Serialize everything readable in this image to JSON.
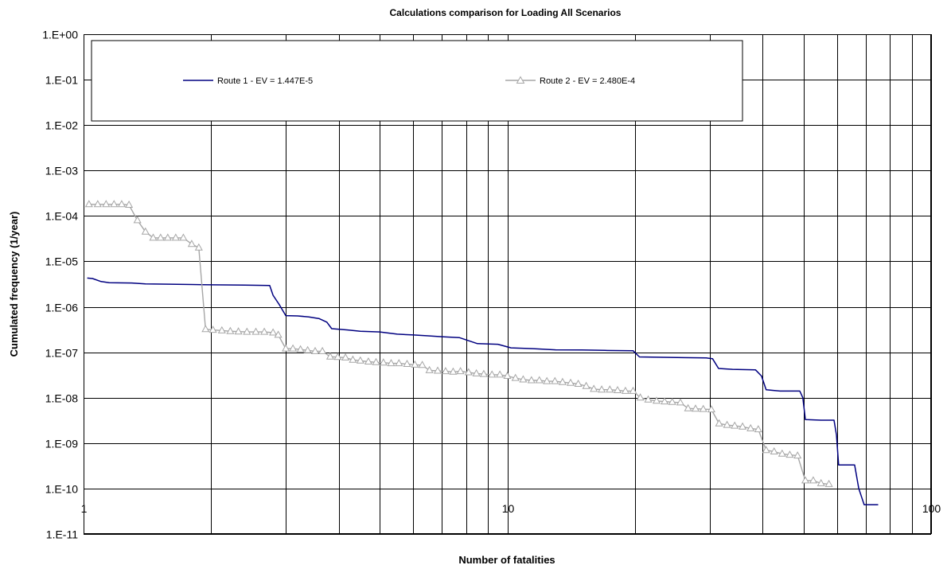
{
  "chart_data": {
    "type": "line",
    "title": "Calculations comparison for Loading All Scenarios",
    "xlabel": "Number of fatalities",
    "ylabel": "Cumulated frequency (1/year)",
    "x_scale": "log",
    "y_scale": "log",
    "xlim": [
      1,
      100
    ],
    "ylim": [
      1e-11,
      1
    ],
    "x_ticks": [
      {
        "value": 1,
        "label": "1"
      },
      {
        "value": 10,
        "label": "10"
      },
      {
        "value": 100,
        "label": "100"
      }
    ],
    "y_ticks": [
      {
        "value": 1,
        "label": "1.E+00"
      },
      {
        "value": 0.1,
        "label": "1.E-01"
      },
      {
        "value": 0.01,
        "label": "1.E-02"
      },
      {
        "value": 0.001,
        "label": "1.E-03"
      },
      {
        "value": 0.0001,
        "label": "1.E-04"
      },
      {
        "value": 1e-05,
        "label": "1.E-05"
      },
      {
        "value": 1e-06,
        "label": "1.E-06"
      },
      {
        "value": 1e-07,
        "label": "1.E-07"
      },
      {
        "value": 1e-08,
        "label": "1.E-08"
      },
      {
        "value": 1e-09,
        "label": "1.E-09"
      },
      {
        "value": 1e-10,
        "label": "1.E-10"
      },
      {
        "value": 1e-11,
        "label": "1.E-11"
      }
    ],
    "x_gridlines": [
      2,
      3,
      4,
      5,
      6,
      7,
      8,
      9,
      20,
      30,
      40,
      50,
      60,
      70,
      80,
      90
    ],
    "grid": true,
    "legend_position": "top",
    "series": [
      {
        "name": "Route 1 - EV = 1.447E-5",
        "color": "#000080",
        "marker": "none",
        "points": [
          [
            1.02,
            4.3e-06
          ],
          [
            1.05,
            4.2e-06
          ],
          [
            1.1,
            3.6e-06
          ],
          [
            1.15,
            3.4e-06
          ],
          [
            1.3,
            3.35e-06
          ],
          [
            1.4,
            3.2e-06
          ],
          [
            1.6,
            3.15e-06
          ],
          [
            1.8,
            3.1e-06
          ],
          [
            2.0,
            3.05e-06
          ],
          [
            2.4,
            3e-06
          ],
          [
            2.75,
            2.95e-06
          ],
          [
            2.8,
            1.8e-06
          ],
          [
            2.9,
            1.1e-06
          ],
          [
            3.0,
            6.4e-07
          ],
          [
            3.2,
            6.3e-07
          ],
          [
            3.4,
            6e-07
          ],
          [
            3.6,
            5.5e-07
          ],
          [
            3.75,
            4.6e-07
          ],
          [
            3.85,
            3.3e-07
          ],
          [
            4.2,
            3.1e-07
          ],
          [
            4.5,
            2.9e-07
          ],
          [
            5.0,
            2.8e-07
          ],
          [
            5.5,
            2.5e-07
          ],
          [
            6.0,
            2.4e-07
          ],
          [
            6.5,
            2.3e-07
          ],
          [
            7.0,
            2.2e-07
          ],
          [
            7.7,
            2.1e-07
          ],
          [
            8.5,
            1.55e-07
          ],
          [
            9.5,
            1.5e-07
          ],
          [
            10.2,
            1.25e-07
          ],
          [
            11.5,
            1.2e-07
          ],
          [
            13.0,
            1.13e-07
          ],
          [
            15.0,
            1.12e-07
          ],
          [
            17.0,
            1.1e-07
          ],
          [
            19.8,
            1.08e-07
          ],
          [
            20.5,
            7.9e-08
          ],
          [
            22.0,
            7.8e-08
          ],
          [
            26.0,
            7.6e-08
          ],
          [
            29.5,
            7.5e-08
          ],
          [
            30.5,
            7.2e-08
          ],
          [
            31.5,
            4.4e-08
          ],
          [
            34.0,
            4.2e-08
          ],
          [
            38.5,
            4.1e-08
          ],
          [
            39.8,
            3e-08
          ],
          [
            40.8,
            1.5e-08
          ],
          [
            44.0,
            1.4e-08
          ],
          [
            49.0,
            1.4e-08
          ],
          [
            49.8,
            1e-08
          ],
          [
            50.5,
            3.3e-09
          ],
          [
            55.0,
            3.2e-09
          ],
          [
            59.0,
            3.2e-09
          ],
          [
            59.8,
            1.5e-09
          ],
          [
            60.5,
            3.3e-10
          ],
          [
            66.0,
            3.3e-10
          ],
          [
            67.5,
            1e-10
          ],
          [
            69.5,
            4.4e-11
          ],
          [
            75.0,
            4.4e-11
          ]
        ]
      },
      {
        "name": "Route 2 - EV = 2.480E-4",
        "color": "#a6a6a6",
        "marker": "triangle",
        "points": [
          [
            1.03,
            0.00018
          ],
          [
            1.08,
            0.00018
          ],
          [
            1.13,
            0.00018
          ],
          [
            1.18,
            0.00018
          ],
          [
            1.23,
            0.00018
          ],
          [
            1.28,
            0.000175
          ],
          [
            1.34,
            8e-05
          ],
          [
            1.4,
            4.5e-05
          ],
          [
            1.46,
            3.3e-05
          ],
          [
            1.52,
            3.3e-05
          ],
          [
            1.58,
            3.3e-05
          ],
          [
            1.65,
            3.3e-05
          ],
          [
            1.72,
            3.3e-05
          ],
          [
            1.8,
            2.4e-05
          ],
          [
            1.87,
            2e-05
          ],
          [
            1.94,
            3.2e-07
          ],
          [
            2.02,
            3.1e-07
          ],
          [
            2.12,
            3e-07
          ],
          [
            2.22,
            2.9e-07
          ],
          [
            2.32,
            2.85e-07
          ],
          [
            2.43,
            2.8e-07
          ],
          [
            2.55,
            2.8e-07
          ],
          [
            2.67,
            2.8e-07
          ],
          [
            2.8,
            2.7e-07
          ],
          [
            2.88,
            2.4e-07
          ],
          [
            3.0,
            1.2e-07
          ],
          [
            3.12,
            1.2e-07
          ],
          [
            3.25,
            1.15e-07
          ],
          [
            3.38,
            1.1e-07
          ],
          [
            3.52,
            1.05e-07
          ],
          [
            3.66,
            1.05e-07
          ],
          [
            3.82,
            8e-08
          ],
          [
            3.98,
            7.8e-08
          ],
          [
            4.15,
            7.6e-08
          ],
          [
            4.32,
            6.8e-08
          ],
          [
            4.5,
            6.5e-08
          ],
          [
            4.7,
            6.2e-08
          ],
          [
            4.9,
            6e-08
          ],
          [
            5.1,
            5.9e-08
          ],
          [
            5.32,
            5.7e-08
          ],
          [
            5.55,
            5.7e-08
          ],
          [
            5.8,
            5.5e-08
          ],
          [
            6.05,
            5.3e-08
          ],
          [
            6.3,
            5.2e-08
          ],
          [
            6.55,
            4e-08
          ],
          [
            6.85,
            3.9e-08
          ],
          [
            7.15,
            3.8e-08
          ],
          [
            7.45,
            3.7e-08
          ],
          [
            7.75,
            3.8e-08
          ],
          [
            8.1,
            3.6e-08
          ],
          [
            8.45,
            3.4e-08
          ],
          [
            8.8,
            3.3e-08
          ],
          [
            9.2,
            3.2e-08
          ],
          [
            9.6,
            3.2e-08
          ],
          [
            10.0,
            3e-08
          ],
          [
            10.45,
            2.7e-08
          ],
          [
            10.9,
            2.5e-08
          ],
          [
            11.4,
            2.4e-08
          ],
          [
            11.9,
            2.4e-08
          ],
          [
            12.4,
            2.3e-08
          ],
          [
            12.95,
            2.3e-08
          ],
          [
            13.5,
            2.2e-08
          ],
          [
            14.1,
            2.1e-08
          ],
          [
            14.7,
            2e-08
          ],
          [
            15.35,
            1.8e-08
          ],
          [
            16.0,
            1.55e-08
          ],
          [
            16.7,
            1.5e-08
          ],
          [
            17.45,
            1.5e-08
          ],
          [
            18.2,
            1.45e-08
          ],
          [
            19.0,
            1.4e-08
          ],
          [
            19.8,
            1.4e-08
          ],
          [
            20.6,
            1e-08
          ],
          [
            21.5,
            9e-09
          ],
          [
            22.5,
            8.5e-09
          ],
          [
            23.5,
            8.2e-09
          ],
          [
            24.5,
            8e-09
          ],
          [
            25.6,
            7.8e-09
          ],
          [
            26.7,
            5.8e-09
          ],
          [
            27.8,
            5.7e-09
          ],
          [
            29.0,
            5.6e-09
          ],
          [
            30.3,
            5.5e-09
          ],
          [
            31.6,
            2.7e-09
          ],
          [
            33.0,
            2.5e-09
          ],
          [
            34.4,
            2.4e-09
          ],
          [
            35.9,
            2.3e-09
          ],
          [
            37.5,
            2.1e-09
          ],
          [
            39.1,
            2e-09
          ],
          [
            40.8,
            7e-10
          ],
          [
            42.6,
            6.5e-10
          ],
          [
            44.5,
            5.8e-10
          ],
          [
            46.4,
            5.5e-10
          ],
          [
            48.4,
            5.3e-10
          ],
          [
            50.5,
            1.5e-10
          ],
          [
            52.7,
            1.5e-10
          ],
          [
            55.0,
            1.3e-10
          ],
          [
            57.4,
            1.25e-10
          ]
        ]
      }
    ]
  }
}
